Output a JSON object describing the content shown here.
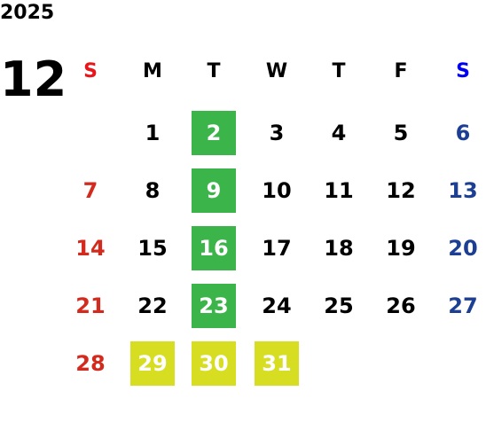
{
  "year": "2025",
  "month": "12",
  "weekdays": [
    {
      "label": "S",
      "color": "#e8161b",
      "date_color": "#d42a1e"
    },
    {
      "label": "M",
      "color": "#000000",
      "date_color": "#000000"
    },
    {
      "label": "T",
      "color": "#000000",
      "date_color": "#000000"
    },
    {
      "label": "W",
      "color": "#000000",
      "date_color": "#000000"
    },
    {
      "label": "T",
      "color": "#000000",
      "date_color": "#000000"
    },
    {
      "label": "F",
      "color": "#000000",
      "date_color": "#000000"
    },
    {
      "label": "S",
      "color": "#0000f0",
      "date_color": "#1c3f94"
    }
  ],
  "weeks": [
    [
      null,
      {
        "day": 1
      },
      {
        "day": 2,
        "highlight": "#3bb54a"
      },
      {
        "day": 3
      },
      {
        "day": 4
      },
      {
        "day": 5
      },
      {
        "day": 6
      }
    ],
    [
      {
        "day": 7
      },
      {
        "day": 8
      },
      {
        "day": 9,
        "highlight": "#3bb54a"
      },
      {
        "day": 10
      },
      {
        "day": 11
      },
      {
        "day": 12
      },
      {
        "day": 13
      }
    ],
    [
      {
        "day": 14
      },
      {
        "day": 15
      },
      {
        "day": 16,
        "highlight": "#3bb54a"
      },
      {
        "day": 17
      },
      {
        "day": 18
      },
      {
        "day": 19
      },
      {
        "day": 20
      }
    ],
    [
      {
        "day": 21
      },
      {
        "day": 22
      },
      {
        "day": 23,
        "highlight": "#3bb54a"
      },
      {
        "day": 24
      },
      {
        "day": 25
      },
      {
        "day": 26
      },
      {
        "day": 27
      }
    ],
    [
      {
        "day": 28
      },
      {
        "day": 29,
        "highlight": "#d7de22"
      },
      {
        "day": 30,
        "highlight": "#d7de22"
      },
      {
        "day": 31,
        "highlight": "#d7de22"
      },
      null,
      null,
      null
    ]
  ]
}
